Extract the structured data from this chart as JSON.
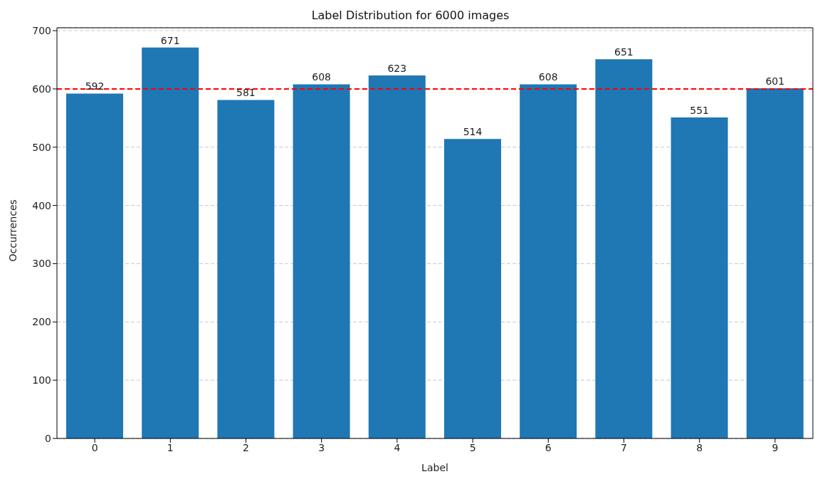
{
  "chart_data": {
    "type": "bar",
    "title": "Label Distribution for 6000 images",
    "xlabel": "Label",
    "ylabel": "Occurrences",
    "categories": [
      "0",
      "1",
      "2",
      "3",
      "4",
      "5",
      "6",
      "7",
      "8",
      "9"
    ],
    "values": [
      592,
      671,
      581,
      608,
      623,
      514,
      608,
      651,
      551,
      601
    ],
    "color": "#1f77b4",
    "ylim": [
      0,
      705
    ],
    "yticks": [
      0,
      100,
      200,
      300,
      400,
      500,
      600,
      700
    ],
    "grid": "y",
    "data_labels": true,
    "ref_lines": [
      {
        "axis": "y",
        "value": 600,
        "color": "#ff0000",
        "line_style": "dashed"
      }
    ]
  }
}
